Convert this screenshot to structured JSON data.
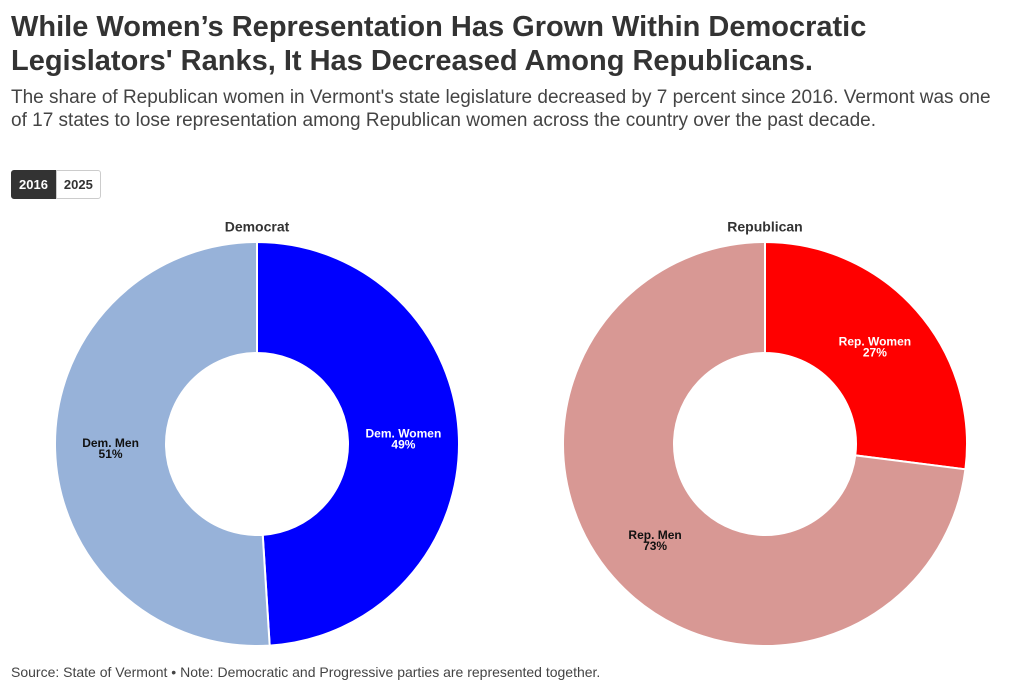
{
  "title": "While Women’s Representation Has Grown Within Democratic Legislators' Ranks, It Has Decreased Among Republicans.",
  "subtitle": "The share of Republican women in Vermont's state legislature decreased by 7 percent since 2016. Vermont was one of 17 states to lose representation among Republican women across the country over the past decade.",
  "buttons": [
    "2016",
    "2025"
  ],
  "source": "Source: State of Vermont • Note: Democratic and Progressive parties are represented together.",
  "chart_data": [
    {
      "type": "pie",
      "title": "Democrat",
      "categories": [
        "Dem. Women",
        "Dem. Men"
      ],
      "values": [
        49,
        51
      ],
      "value_labels": [
        "49%",
        "51%"
      ],
      "colors": [
        "#0000ff",
        "#97b2d9"
      ]
    },
    {
      "type": "pie",
      "title": "Republican",
      "categories": [
        "Rep. Women",
        "Rep. Men"
      ],
      "values": [
        27,
        73
      ],
      "value_labels": [
        "27%",
        "73%"
      ],
      "colors": [
        "#ff0000",
        "#d89894"
      ]
    }
  ]
}
